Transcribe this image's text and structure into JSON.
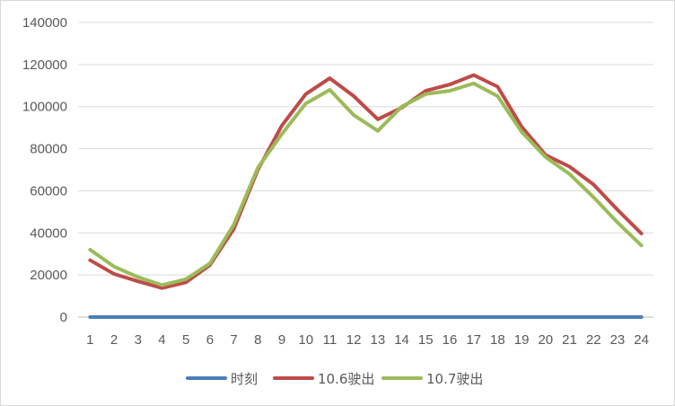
{
  "chart_data": {
    "type": "line",
    "title": "",
    "xlabel": "",
    "ylabel": "",
    "categories": [
      "1",
      "2",
      "3",
      "4",
      "5",
      "6",
      "7",
      "8",
      "9",
      "10",
      "11",
      "12",
      "13",
      "14",
      "15",
      "16",
      "17",
      "18",
      "19",
      "20",
      "21",
      "22",
      "23",
      "24"
    ],
    "ylim": [
      0,
      140000
    ],
    "yticks": [
      "0",
      "20000",
      "40000",
      "60000",
      "80000",
      "100000",
      "120000",
      "140000"
    ],
    "grid": true,
    "legend_position": "bottom",
    "series": [
      {
        "name": "时刻",
        "color": "#4a7ebb",
        "values": [
          0,
          0,
          0,
          0,
          0,
          0,
          0,
          0,
          0,
          0,
          0,
          0,
          0,
          0,
          0,
          0,
          0,
          0,
          0,
          0,
          0,
          0,
          0,
          0
        ]
      },
      {
        "name": "10.6驶出",
        "color": "#be4b48",
        "values": [
          27000,
          20500,
          17000,
          13800,
          16500,
          24700,
          42000,
          70000,
          91000,
          106000,
          113500,
          105000,
          94000,
          99500,
          107500,
          110500,
          115000,
          109500,
          90500,
          77000,
          71500,
          63000,
          51000,
          39700
        ]
      },
      {
        "name": "10.7驶出",
        "color": "#9bbb59",
        "values": [
          32000,
          24000,
          19000,
          15200,
          18000,
          25500,
          44000,
          71000,
          87000,
          101500,
          108000,
          96000,
          88500,
          100000,
          106000,
          107500,
          111000,
          105000,
          88000,
          76000,
          68000,
          57000,
          45000,
          34000
        ]
      }
    ]
  }
}
